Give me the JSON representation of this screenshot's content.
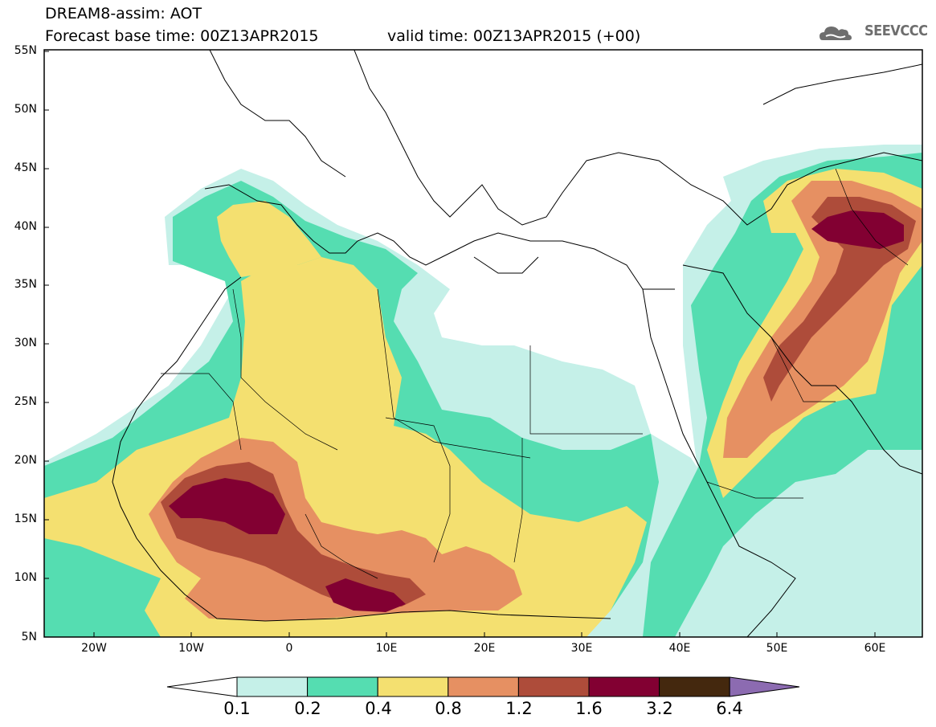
{
  "header": {
    "title_line1": "DREAM8-assim: AOT",
    "title_line2": "Forecast base time: 00Z13APR2015",
    "valid_time": "valid time: 00Z13APR2015 (+00)",
    "logo_text": "SEEVCCC"
  },
  "map": {
    "lat_labels": [
      "55N",
      "50N",
      "45N",
      "40N",
      "35N",
      "30N",
      "25N",
      "20N",
      "15N",
      "10N",
      "5N"
    ],
    "lon_labels": [
      "20W",
      "10W",
      "0",
      "10E",
      "20E",
      "30E",
      "40E",
      "50E",
      "60E"
    ],
    "lat_range": [
      5,
      55
    ],
    "lon_range": [
      -25,
      65
    ]
  },
  "legend": {
    "levels": [
      "0.1",
      "0.2",
      "0.4",
      "0.8",
      "1.2",
      "1.6",
      "3.2",
      "6.4"
    ],
    "colors": [
      "#ffffff",
      "#c5f0e8",
      "#55ddb1",
      "#f4e070",
      "#e69062",
      "#ae4c3a",
      "#820032",
      "#44280e",
      "#8c6bb1"
    ]
  }
}
